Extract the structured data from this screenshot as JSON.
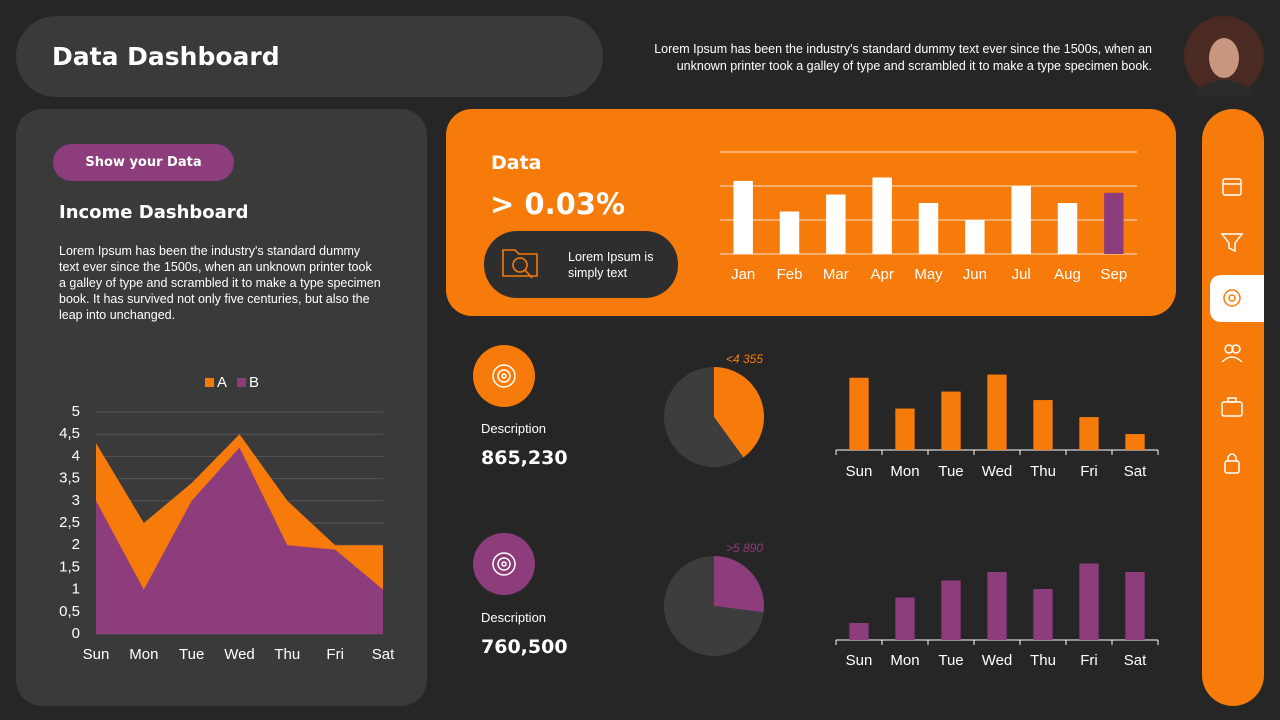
{
  "header": {
    "title": "Data Dashboard",
    "text": "Lorem Ipsum has been the industry's standard dummy text ever since the 1500s, when an unknown printer took a galley of type and scrambled it to make a type specimen book."
  },
  "left_panel": {
    "button": "Show your Data",
    "title": "Income Dashboard",
    "text": "Lorem Ipsum has been the industry's standard dummy text ever since the 1500s, when an unknown printer took a galley of type and scrambled it to make a type specimen book. It has survived not only five centuries, but also the leap into unchanged."
  },
  "highlight": {
    "label": "Data",
    "value": "> 0.03%",
    "badge": "Lorem Ipsum is simply text"
  },
  "kpis": [
    {
      "label": "Description",
      "value": "865,230"
    },
    {
      "label": "Description",
      "value": "760,500"
    }
  ],
  "chart_data": [
    {
      "type": "area",
      "categories": [
        "Sun",
        "Mon",
        "Tue",
        "Wed",
        "Thu",
        "Fri",
        "Sat"
      ],
      "series": [
        {
          "name": "A",
          "color": "#f77b0a",
          "values": [
            4.3,
            2.5,
            3.4,
            4.5,
            3,
            2,
            2
          ]
        },
        {
          "name": "B",
          "color": "#8e3d7c",
          "values": [
            3,
            1,
            3,
            4.2,
            2,
            1.9,
            1
          ]
        }
      ],
      "ylim": [
        0,
        5
      ],
      "yticks": [
        0,
        {
          "value": 0.5,
          "label": "0,5"
        },
        1,
        {
          "value": 1.5,
          "label": "1,5"
        },
        2,
        {
          "value": 2.5,
          "label": "2,5"
        },
        3,
        {
          "value": 3.5,
          "label": "3,5"
        },
        4,
        {
          "value": 4.5,
          "label": "4,5"
        },
        5
      ],
      "grid": true,
      "legend": "top"
    },
    {
      "type": "bar",
      "categories": [
        "Jan",
        "Feb",
        "Mar",
        "Apr",
        "May",
        "Jun",
        "Jul",
        "Aug",
        "Sep"
      ],
      "values": [
        2.15,
        1.25,
        1.75,
        2.25,
        1.5,
        1,
        2,
        1.5,
        1.8
      ],
      "colors": [
        "#ffffff",
        "#ffffff",
        "#ffffff",
        "#ffffff",
        "#ffffff",
        "#ffffff",
        "#ffffff",
        "#ffffff",
        "#8e3d7c"
      ],
      "ylim": [
        0,
        3
      ],
      "yticks": [
        0,
        1,
        2,
        3
      ],
      "tick_labels": false,
      "grid": true
    },
    {
      "type": "pie",
      "values": [
        40,
        60
      ],
      "colors": [
        "#f77b0a",
        "#3d3d3d"
      ],
      "annotation": "<4 355",
      "annotation_color": "#f77b0a"
    },
    {
      "type": "bar",
      "categories": [
        "Sun",
        "Mon",
        "Tue",
        "Wed",
        "Thu",
        "Fri",
        "Sat"
      ],
      "values": [
        68,
        39,
        55,
        71,
        47,
        31,
        15
      ],
      "color": "#f77b0a",
      "ylim": [
        0,
        80
      ],
      "grid": false
    },
    {
      "type": "pie",
      "values": [
        27,
        73
      ],
      "colors": [
        "#8e3d7c",
        "#3d3d3d"
      ],
      "annotation": ">5 890",
      "annotation_color": "#8e3d7c"
    },
    {
      "type": "bar",
      "categories": [
        "Sun",
        "Mon",
        "Tue",
        "Wed",
        "Thu",
        "Fri",
        "Sat"
      ],
      "values": [
        16,
        40,
        56,
        64,
        48,
        72,
        64
      ],
      "color": "#8e3d7c",
      "ylim": [
        0,
        80
      ],
      "grid": false
    }
  ]
}
